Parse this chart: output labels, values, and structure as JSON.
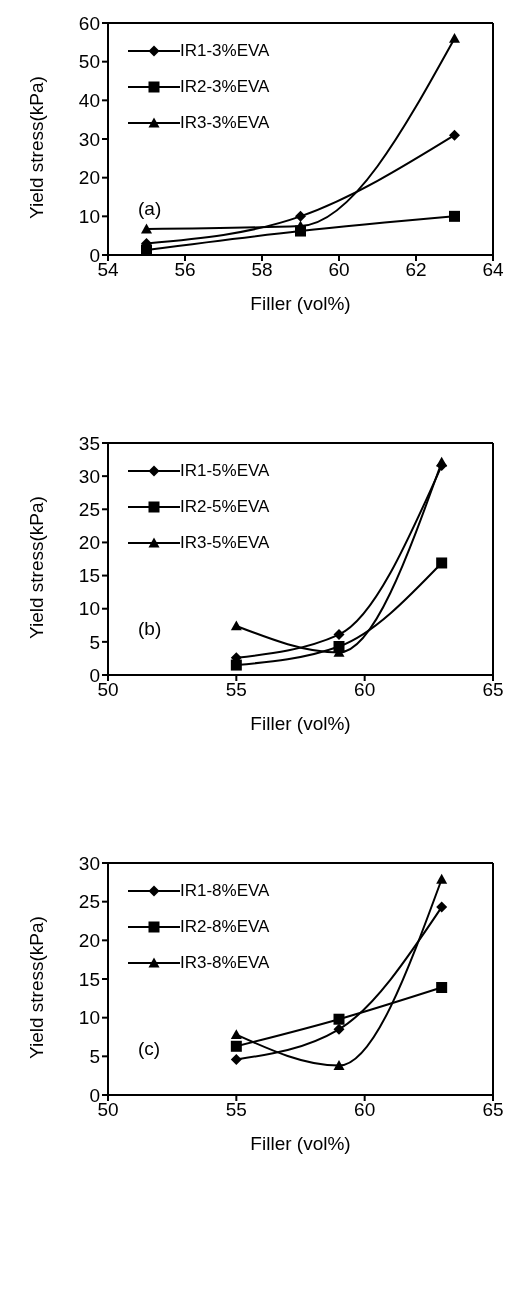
{
  "chart_data": [
    {
      "type": "line",
      "xlabel": "Filler (vol%)",
      "ylabel": "Yield stress(kPa)",
      "x": [
        55,
        59,
        63
      ],
      "xlim": [
        54,
        64
      ],
      "xticks": [
        54,
        56,
        58,
        60,
        62,
        64
      ],
      "ylim": [
        0,
        60
      ],
      "yticks": [
        0,
        10,
        20,
        30,
        40,
        50,
        60
      ],
      "grid": false,
      "legend": "top left",
      "annotations": [
        "(a)"
      ],
      "series": [
        {
          "name": "IR1-3%EVA",
          "color": "#000000",
          "marker": "diamond",
          "values": [
            3,
            10,
            31
          ]
        },
        {
          "name": "IR2-3%EVA",
          "color": "#000000",
          "marker": "square",
          "values": [
            1.3,
            6.2,
            10
          ]
        },
        {
          "name": "IR3-3%EVA",
          "color": "#000000",
          "marker": "triangle",
          "values": [
            6.7,
            7.5,
            56
          ]
        }
      ]
    },
    {
      "type": "line",
      "xlabel": "Filler (vol%)",
      "ylabel": "Yield stress(kPa)",
      "x": [
        55,
        59,
        63
      ],
      "xlim": [
        50,
        65
      ],
      "xticks": [
        50,
        55,
        60,
        65
      ],
      "ylim": [
        0,
        35
      ],
      "yticks": [
        0,
        5,
        10,
        15,
        20,
        25,
        30,
        35
      ],
      "grid": false,
      "legend": "top left",
      "annotations": [
        "(b)"
      ],
      "series": [
        {
          "name": "IR1-5%EVA",
          "color": "#000000",
          "marker": "diamond",
          "values": [
            2.6,
            6.1,
            31.6
          ]
        },
        {
          "name": "IR2-5%EVA",
          "color": "#000000",
          "marker": "square",
          "values": [
            1.5,
            4.3,
            16.9
          ]
        },
        {
          "name": "IR3-5%EVA",
          "color": "#000000",
          "marker": "triangle",
          "values": [
            7.4,
            3.4,
            32.1
          ]
        }
      ]
    },
    {
      "type": "line",
      "xlabel": "Filler (vol%)",
      "ylabel": "Yield stress(kPa)",
      "x": [
        55,
        59,
        63
      ],
      "xlim": [
        50,
        65
      ],
      "xticks": [
        50,
        55,
        60,
        65
      ],
      "ylim": [
        0,
        30
      ],
      "yticks": [
        0,
        5,
        10,
        15,
        20,
        25,
        30
      ],
      "grid": false,
      "legend": "top left",
      "annotations": [
        "(c)"
      ],
      "series": [
        {
          "name": "IR1-8%EVA",
          "color": "#000000",
          "marker": "diamond",
          "values": [
            4.6,
            8.5,
            24.3
          ]
        },
        {
          "name": "IR2-8%EVA",
          "color": "#000000",
          "marker": "square",
          "values": [
            6.3,
            9.8,
            13.9
          ]
        },
        {
          "name": "IR3-8%EVA",
          "color": "#000000",
          "marker": "triangle",
          "values": [
            7.8,
            3.8,
            27.9
          ]
        }
      ]
    }
  ]
}
